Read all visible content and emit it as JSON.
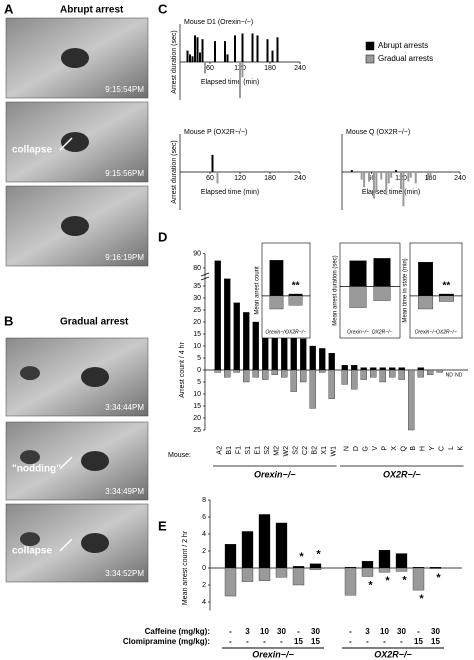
{
  "photos": [
    {
      "label": "A",
      "title": "Abrupt arrest",
      "frames": [
        {
          "time": "9:15:54PM"
        },
        {
          "time": "9:15:56PM",
          "note": "collapse"
        },
        {
          "time": "9:16:19PM"
        }
      ]
    },
    {
      "label": "B",
      "title": "Gradual arrest",
      "frames": [
        {
          "time": "3:34:44PM"
        },
        {
          "time": "3:34:49PM",
          "note": "\"nodding\""
        },
        {
          "time": "3:34:52PM",
          "note": "collapse"
        }
      ]
    }
  ],
  "chart_data": [
    {
      "type": "bar",
      "label": "C",
      "title": "Mouse D1 (Orexin−/−)",
      "xlabel": "Elapsed time (min)",
      "ylabel": "Arrest duration (sec)",
      "xlim": [
        0,
        240
      ],
      "xticks": [
        60,
        120,
        180,
        240
      ],
      "ylim": [
        -100,
        100
      ],
      "legend": "right",
      "series": [
        {
          "name": "Abrupt arrests",
          "color": "#000000",
          "x": [
            15,
            20,
            25,
            30,
            35,
            40,
            45,
            70,
            90,
            95,
            110,
            125,
            145,
            155,
            175,
            185,
            195
          ],
          "values": [
            30,
            20,
            15,
            70,
            65,
            25,
            60,
            55,
            55,
            20,
            70,
            75,
            75,
            70,
            60,
            30,
            65
          ]
        },
        {
          "name": "Gradual arrests",
          "color": "#9a9a9a",
          "x": [
            50,
            120,
            125
          ],
          "values": [
            -30,
            -95,
            -40
          ]
        }
      ]
    },
    {
      "type": "bar",
      "title": "Mouse P (OX2R−/−)",
      "xlabel": "Elapsed time (min)",
      "ylabel": "Arrest duration (sec)",
      "xlim": [
        0,
        240
      ],
      "xticks": [
        60,
        120,
        180,
        240
      ],
      "ylim": [
        -100,
        100
      ],
      "series": [
        {
          "color": "#000000",
          "x": [
            65
          ],
          "values": [
            45
          ]
        },
        {
          "color": "#9a9a9a",
          "x": [
            75
          ],
          "values": [
            -30
          ]
        }
      ]
    },
    {
      "type": "bar",
      "title": "Mouse Q (OX2R−/−)",
      "xlabel": "Elapsed time (min)",
      "xlim": [
        0,
        240
      ],
      "xticks": [
        60,
        120,
        180,
        240
      ],
      "ylim": [
        -100,
        100
      ],
      "series": [
        {
          "color": "#000000",
          "x": [
            20,
            110
          ],
          "values": [
            5,
            5
          ]
        },
        {
          "color": "#9a9a9a",
          "x": [
            40,
            45,
            55,
            65,
            70,
            80,
            90,
            95,
            100,
            120,
            125,
            135,
            140,
            150,
            175,
            180
          ],
          "values": [
            -20,
            -40,
            -25,
            -70,
            -50,
            -20,
            -60,
            -30,
            -15,
            -45,
            -90,
            -25,
            -15,
            -30,
            -20,
            -15
          ]
        }
      ]
    },
    {
      "type": "grouped-updown",
      "label": "D",
      "ylabel": "Arrest count / 4 hr",
      "xlabel": "Mouse:",
      "ylim": [
        -25,
        90
      ],
      "yticks": [
        {
          "value": -25,
          "label": "25"
        },
        {
          "value": -20,
          "label": "20"
        },
        {
          "value": -15,
          "label": "15"
        },
        {
          "value": -10,
          "label": "10"
        },
        {
          "value": -5,
          "label": "5"
        },
        0,
        5,
        10,
        15,
        20,
        25,
        30,
        35,
        80,
        90
      ],
      "groups": [
        {
          "name": "Orexin−/−",
          "categories": [
            "A2",
            "B1",
            "F1",
            "S1",
            "E1",
            "S2",
            "M2",
            "W2",
            "S2",
            "C2",
            "B2",
            "X1",
            "W1"
          ],
          "series": [
            {
              "color": "#000000",
              "values": [
                85,
                38,
                28,
                24,
                20,
                19,
                19,
                17,
                14,
                13,
                10,
                9,
                7
              ]
            },
            {
              "color": "#9a9a9a",
              "values": [
                -1,
                -3,
                -1,
                -5,
                -3,
                -4,
                -2,
                -3,
                -9,
                -5,
                -16,
                -1,
                -12
              ]
            }
          ]
        },
        {
          "name": "OX2R−/−",
          "categories": [
            "N",
            "D",
            "G",
            "V",
            "P",
            "X",
            "Q",
            "B",
            "H",
            "Y",
            "C",
            "L",
            "K"
          ],
          "series": [
            {
              "color": "#000000",
              "values": [
                2,
                2,
                1,
                1,
                1,
                1,
                1,
                0,
                1,
                0,
                0,
                null,
                null
              ]
            },
            {
              "color": "#9a9a9a",
              "values": [
                -6,
                -8,
                -4,
                -3,
                -5,
                -3,
                -4,
                -25,
                -3,
                -2,
                -1,
                null,
                null
              ]
            }
          ],
          "notes": [
            "ND",
            "ND"
          ]
        }
      ]
    },
    {
      "type": "inset",
      "ylabel": "Mean arrest count",
      "categories": [
        "Orexin−/−",
        "OX2R−/−"
      ],
      "ylim": [
        -15,
        25
      ],
      "annotation": "**",
      "series": [
        {
          "color": "#000000",
          "values": [
            19,
            1
          ]
        },
        {
          "color": "#9a9a9a",
          "values": [
            -7,
            -5
          ]
        }
      ]
    },
    {
      "type": "inset",
      "ylabel": "Mean arrest duration (sec)",
      "categories": [
        "Orexin−/−",
        "OX2R−/−"
      ],
      "ylim": [
        -80,
        80
      ],
      "annotation": "**",
      "series": [
        {
          "color": "#000000",
          "values": [
            55,
            60
          ]
        },
        {
          "color": "#9a9a9a",
          "values": [
            -45,
            -30
          ]
        }
      ]
    },
    {
      "type": "inset",
      "ylabel": "Mean time in state (min)",
      "categories": [
        "Orexin−/−",
        "OX2R−/−"
      ],
      "ylim": [
        -15,
        25
      ],
      "annotation": "**",
      "series": [
        {
          "color": "#000000",
          "values": [
            18,
            1
          ]
        },
        {
          "color": "#9a9a9a",
          "values": [
            -7,
            -3
          ]
        }
      ]
    },
    {
      "type": "dose-updown",
      "label": "E",
      "ylabel": "Mean arrest count / 2 hr",
      "row_labels": [
        "Caffeine (mg/kg):",
        "Clomipramine (mg/kg):"
      ],
      "ylim": [
        -5,
        8
      ],
      "yticks": [
        {
          "value": -4,
          "label": "4"
        },
        {
          "value": -2,
          "label": "2"
        },
        0,
        2,
        4,
        6,
        8
      ],
      "groups": [
        {
          "name": "Orexin−/−",
          "caffeine": [
            "-",
            "3",
            "10",
            "30",
            "-",
            "30"
          ],
          "clomipramine": [
            "-",
            "-",
            "-",
            "-",
            "15",
            "15"
          ],
          "series": [
            {
              "color": "#000000",
              "values": [
                2.8,
                4.3,
                6.3,
                5.3,
                0.2,
                0.5
              ]
            },
            {
              "color": "#9a9a9a",
              "values": [
                -3.3,
                -1.6,
                -1.5,
                -1.1,
                -2.0,
                -0.2
              ]
            }
          ],
          "stars": [
            "*",
            "*"
          ]
        },
        {
          "name": "OX2R−/−",
          "caffeine": [
            "-",
            "3",
            "10",
            "30",
            "-",
            "30"
          ],
          "clomipramine": [
            "-",
            "-",
            "-",
            "-",
            "15",
            "15"
          ],
          "series": [
            {
              "color": "#000000",
              "values": [
                0.1,
                0.8,
                2.1,
                1.7,
                0.1,
                0.1
              ]
            },
            {
              "color": "#9a9a9a",
              "values": [
                -3.2,
                -1.0,
                -0.5,
                -0.4,
                -2.6,
                -0.1
              ]
            }
          ],
          "stars": [
            "*",
            "*",
            "*",
            "*",
            "*"
          ]
        }
      ]
    }
  ]
}
